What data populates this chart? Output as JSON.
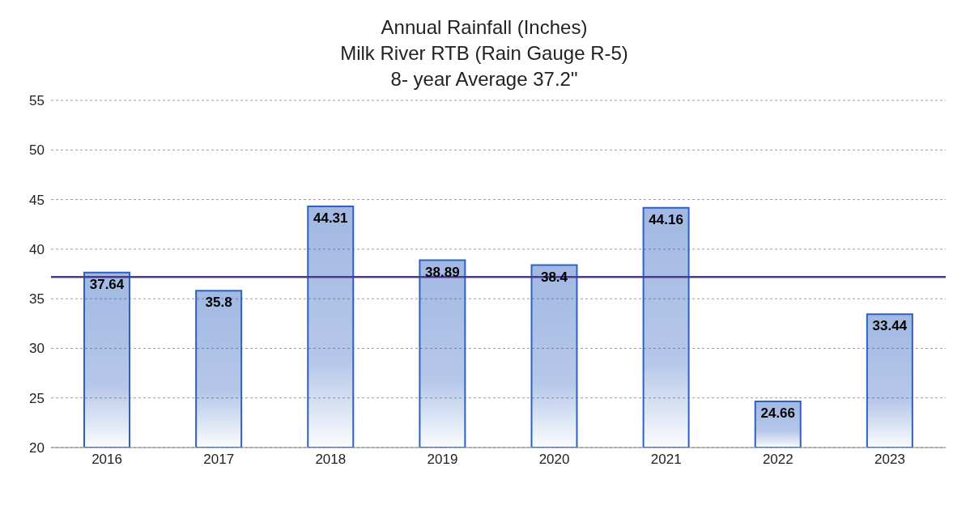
{
  "chart_data": {
    "type": "bar",
    "title": "Annual Rainfall (Inches)",
    "subtitle": "Milk River RTB (Rain Gauge R-5)",
    "annotations": [
      "8- year Average 37.2\""
    ],
    "categories": [
      "2016",
      "2017",
      "2018",
      "2019",
      "2020",
      "2021",
      "2022",
      "2023"
    ],
    "values": [
      37.64,
      35.8,
      44.31,
      38.89,
      38.4,
      44.16,
      24.66,
      33.44
    ],
    "color": "#2f62c0",
    "ylim": [
      20,
      55
    ],
    "yticks": [
      20,
      25,
      30,
      35,
      40,
      45,
      50,
      55
    ],
    "grid": "y",
    "data_labels": true,
    "ref_lines": [
      {
        "axis": "y",
        "value": 37.2,
        "color": "#4b3a8f"
      }
    ]
  }
}
